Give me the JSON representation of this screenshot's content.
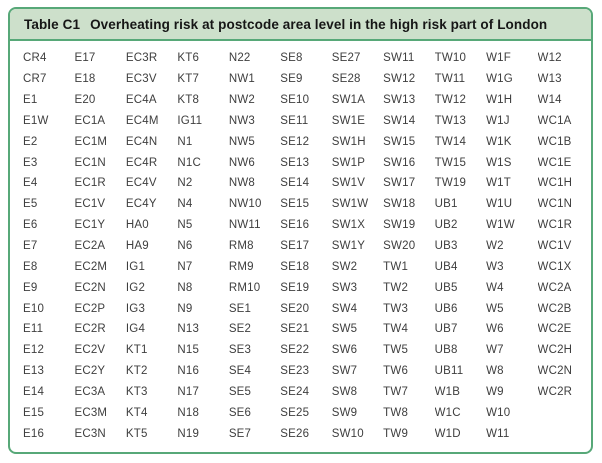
{
  "header": {
    "label": "Table C1",
    "title": "Overheating risk at postcode area level in the high risk part of London"
  },
  "colors": {
    "border_green": "#57a878",
    "header_background": "#cde0cb",
    "title_text": "#161616",
    "cell_text": "#3e3e3e"
  },
  "chart_data": {
    "type": "table",
    "title": "Table C1  Overheating risk at postcode area level in the high risk part of London",
    "rows": 19,
    "column_count": 11,
    "columns": [
      [
        "CR4",
        "CR7",
        "E1",
        "E1W",
        "E2",
        "E3",
        "E4",
        "E5",
        "E6",
        "E7",
        "E8",
        "E9",
        "E10",
        "E11",
        "E12",
        "E13",
        "E14",
        "E15",
        "E16"
      ],
      [
        "E17",
        "E18",
        "E20",
        "EC1A",
        "EC1M",
        "EC1N",
        "EC1R",
        "EC1V",
        "EC1Y",
        "EC2A",
        "EC2M",
        "EC2N",
        "EC2P",
        "EC2R",
        "EC2V",
        "EC2Y",
        "EC3A",
        "EC3M",
        "EC3N"
      ],
      [
        "EC3R",
        "EC3V",
        "EC4A",
        "EC4M",
        "EC4N",
        "EC4R",
        "EC4V",
        "EC4Y",
        "HA0",
        "HA9",
        "IG1",
        "IG2",
        "IG3",
        "IG4",
        "KT1",
        "KT2",
        "KT3",
        "KT4",
        "KT5"
      ],
      [
        "KT6",
        "KT7",
        "KT8",
        "IG11",
        "N1",
        "N1C",
        "N2",
        "N4",
        "N5",
        "N6",
        "N7",
        "N8",
        "N9",
        "N13",
        "N15",
        "N16",
        "N17",
        "N18",
        "N19"
      ],
      [
        "N22",
        "NW1",
        "NW2",
        "NW3",
        "NW5",
        "NW6",
        "NW8",
        "NW10",
        "NW11",
        "RM8",
        "RM9",
        "RM10",
        "SE1",
        "SE2",
        "SE3",
        "SE4",
        "SE5",
        "SE6",
        "SE7"
      ],
      [
        "SE8",
        "SE9",
        "SE10",
        "SE11",
        "SE12",
        "SE13",
        "SE14",
        "SE15",
        "SE16",
        "SE17",
        "SE18",
        "SE19",
        "SE20",
        "SE21",
        "SE22",
        "SE23",
        "SE24",
        "SE25",
        "SE26"
      ],
      [
        "SE27",
        "SE28",
        "SW1A",
        "SW1E",
        "SW1H",
        "SW1P",
        "SW1V",
        "SW1W",
        "SW1X",
        "SW1Y",
        "SW2",
        "SW3",
        "SW4",
        "SW5",
        "SW6",
        "SW7",
        "SW8",
        "SW9",
        "SW10"
      ],
      [
        "SW11",
        "SW12",
        "SW13",
        "SW14",
        "SW15",
        "SW16",
        "SW17",
        "SW18",
        "SW19",
        "SW20",
        "TW1",
        "TW2",
        "TW3",
        "TW4",
        "TW5",
        "TW6",
        "TW7",
        "TW8",
        "TW9"
      ],
      [
        "TW10",
        "TW11",
        "TW12",
        "TW13",
        "TW14",
        "TW15",
        "TW19",
        "UB1",
        "UB2",
        "UB3",
        "UB4",
        "UB5",
        "UB6",
        "UB7",
        "UB8",
        "UB11",
        "W1B",
        "W1C",
        "W1D"
      ],
      [
        "W1F",
        "W1G",
        "W1H",
        "W1J",
        "W1K",
        "W1S",
        "W1T",
        "W1U",
        "W1W",
        "W2",
        "W3",
        "W4",
        "W5",
        "W6",
        "W7",
        "W8",
        "W9",
        "W10",
        "W11"
      ],
      [
        "W12",
        "W13",
        "W14",
        "WC1A",
        "WC1B",
        "WC1E",
        "WC1H",
        "WC1N",
        "WC1R",
        "WC1V",
        "WC1X",
        "WC2A",
        "WC2B",
        "WC2E",
        "WC2H",
        "WC2N",
        "WC2R",
        "",
        ""
      ]
    ]
  }
}
